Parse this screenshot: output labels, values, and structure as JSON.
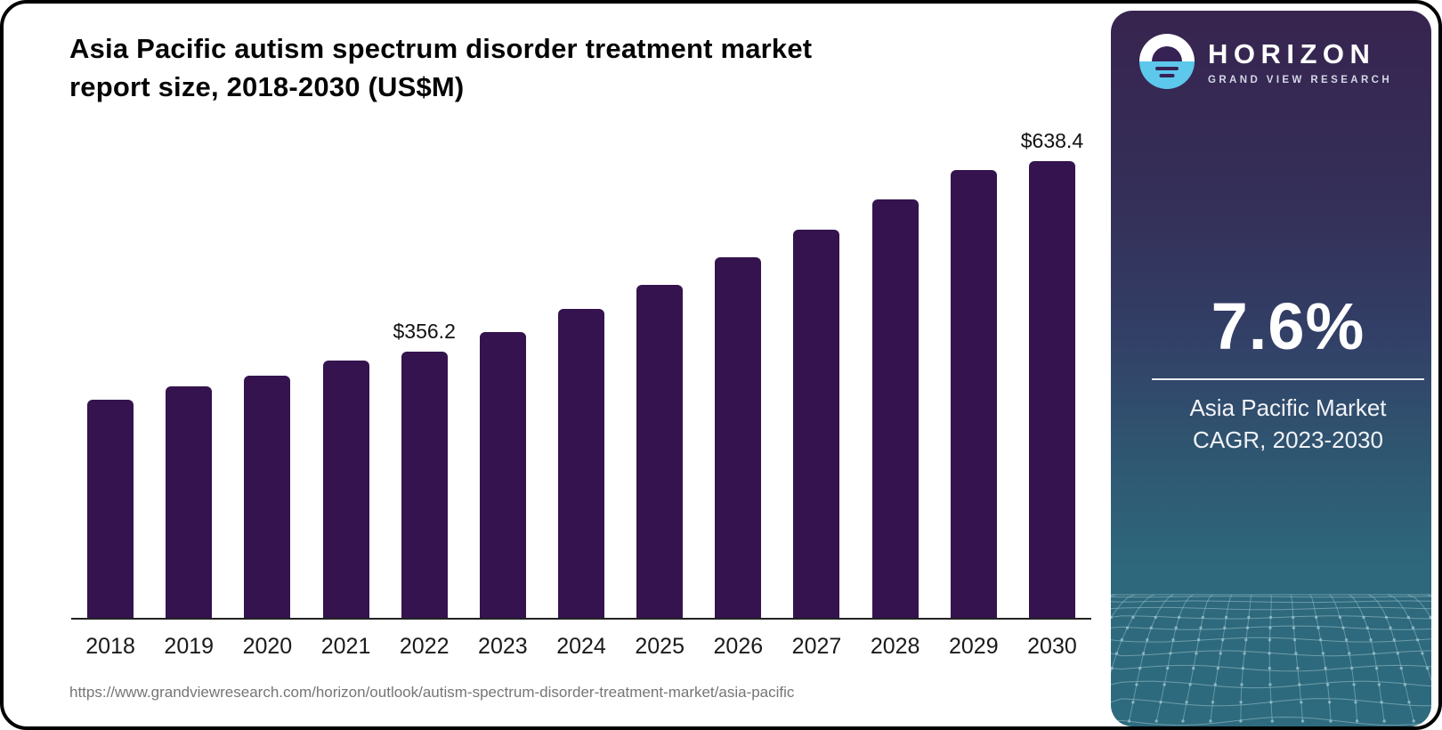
{
  "header": {
    "title_line1": "Asia Pacific autism spectrum disorder treatment market",
    "title_line2": "report size, 2018-2030 (US$M)"
  },
  "source_url": "https://www.grandviewresearch.com/horizon/outlook/autism-spectrum-disorder-treatment-market/asia-pacific",
  "chart_data": {
    "type": "bar",
    "title": "Asia Pacific autism spectrum disorder treatment market report size, 2018-2030 (US$M)",
    "categories": [
      "2018",
      "2019",
      "2020",
      "2021",
      "2022",
      "2023",
      "2024",
      "2025",
      "2026",
      "2027",
      "2028",
      "2029",
      "2030"
    ],
    "values": [
      292.4,
      310.2,
      324.6,
      344.9,
      356.2,
      383.0,
      414.1,
      446.3,
      483.3,
      520.3,
      560.9,
      600.2,
      638.4
    ],
    "data_labels": {
      "2022": "$356.2",
      "2030": "$638.4"
    },
    "xlabel": "",
    "ylabel": "",
    "ylim": [
      0,
      660
    ],
    "grid": false,
    "legend": false,
    "bar_color": "#34134e"
  },
  "sidebar": {
    "logo": {
      "brand": "HORIZON",
      "sub_brand": "GRAND VIEW RESEARCH",
      "circle_top_color": "#ffffff",
      "circle_bottom_color": "#5ec7ec",
      "mark_color": "#362254"
    },
    "stat": {
      "value": "7.6%",
      "caption_line1": "Asia Pacific Market",
      "caption_line2": "CAGR, 2023-2030"
    },
    "colors": {
      "gradient_top": "#37244f",
      "gradient_middle": "#323f66",
      "gradient_bottom": "#2e6b7e",
      "mesh_line": "#9ec6cf"
    }
  }
}
